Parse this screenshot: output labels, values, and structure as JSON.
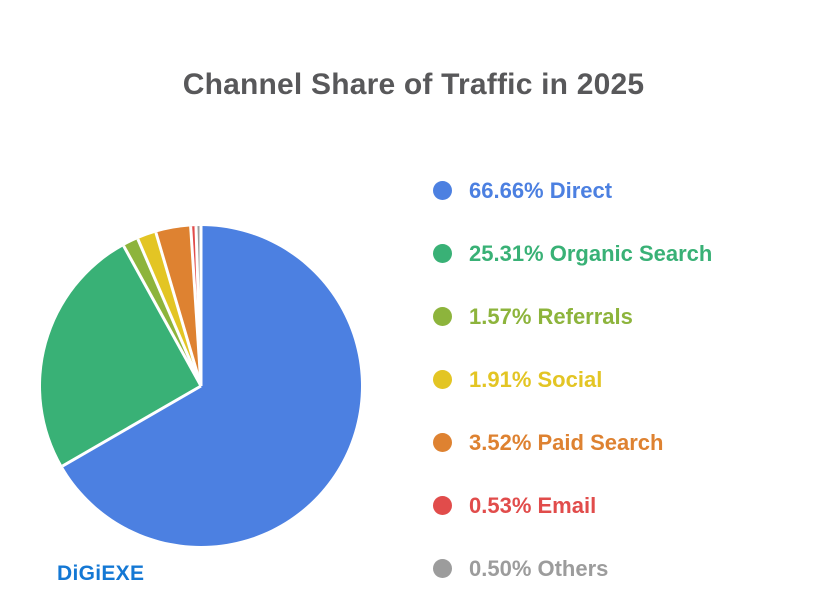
{
  "title": {
    "text": "Channel Share of Traffic in 2025"
  },
  "logo": {
    "text": "DiGiEXE"
  },
  "colors": {
    "background": "#ffffff",
    "title_text": "#58585a",
    "logo_text": "#1478d4",
    "slice_border": "#ffffff"
  },
  "chart_data": {
    "type": "pie",
    "title": "Channel Share of Traffic in 2025",
    "legend_position": "right",
    "start_angle_deg": 0,
    "direction": "clockwise",
    "categories": [
      "Direct",
      "Organic Search",
      "Referrals",
      "Social",
      "Paid Search",
      "Email",
      "Others"
    ],
    "values": [
      66.66,
      25.31,
      1.57,
      1.91,
      3.52,
      0.53,
      0.5
    ],
    "series": [
      {
        "name": "Direct",
        "value": 66.66,
        "label": "66.66% Direct",
        "color": "#4c80e1"
      },
      {
        "name": "Organic Search",
        "value": 25.31,
        "label": "25.31% Organic Search",
        "color": "#39b176"
      },
      {
        "name": "Referrals",
        "value": 1.57,
        "label": "1.57% Referrals",
        "color": "#8db43c"
      },
      {
        "name": "Social",
        "value": 1.91,
        "label": "1.91% Social",
        "color": "#e3c524"
      },
      {
        "name": "Paid Search",
        "value": 3.52,
        "label": "3.52% Paid Search",
        "color": "#de8231"
      },
      {
        "name": "Email",
        "value": 0.53,
        "label": "0.53% Email",
        "color": "#e14c4b"
      },
      {
        "name": "Others",
        "value": 0.5,
        "label": "0.50% Others",
        "color": "#9c9c9c"
      }
    ]
  }
}
